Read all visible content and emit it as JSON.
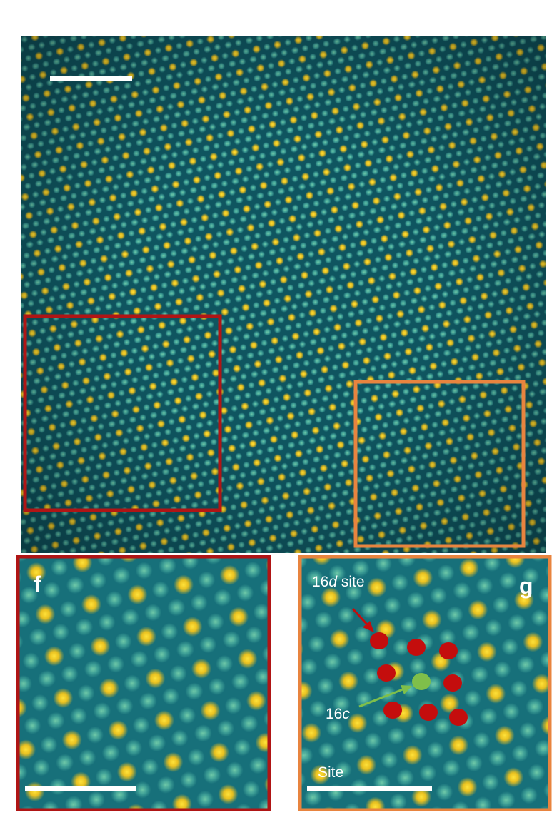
{
  "panels": {
    "f": {
      "label": "f"
    },
    "g": {
      "label": "g",
      "annotations": {
        "site_16d": [
          "16",
          "d",
          " site"
        ],
        "site_16c": [
          "16",
          "c"
        ],
        "site": "Site"
      }
    }
  }
}
